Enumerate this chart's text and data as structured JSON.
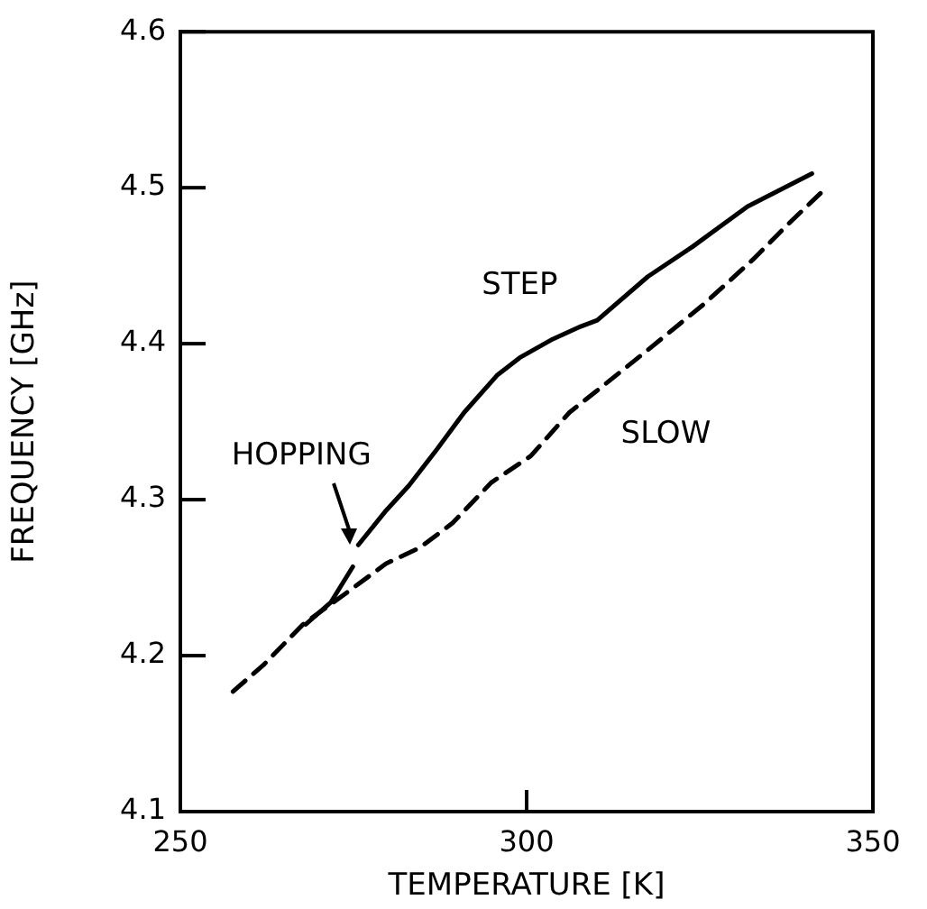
{
  "chart_data": {
    "type": "line",
    "xlabel": "TEMPERATURE [K]",
    "ylabel": "FREQUENCY [GHz]",
    "xlim": [
      250,
      350
    ],
    "xticks": [
      250,
      300,
      350
    ],
    "ylim": [
      4.1,
      4.6
    ],
    "yticks": [
      4.1,
      4.2,
      4.3,
      4.4,
      4.5,
      4.6
    ],
    "grid": false,
    "legend": false,
    "marker": "none",
    "series": [
      {
        "name": "STEP",
        "color": "#000000",
        "line_style": "solid",
        "x": [
          268.1,
          271.7,
          274.9,
          null,
          275.7,
          279.7,
          283,
          287,
          291,
          295.8,
          299,
          303.8,
          307.8,
          310.2,
          317.5,
          323.9,
          331.9,
          341.2
        ],
        "values": [
          4.22,
          4.234,
          4.257,
          null,
          4.271,
          4.293,
          4.309,
          4.332,
          4.356,
          4.38,
          4.391,
          4.403,
          4.411,
          4.415,
          4.443,
          4.462,
          4.488,
          4.509
        ]
      },
      {
        "name": "SLOW",
        "color": "#000000",
        "line_style": "dashed",
        "x": [
          257.6,
          262,
          267.7,
          273.3,
          279.7,
          284.5,
          289.3,
          294.9,
          300.6,
          306.2,
          310.2,
          317.5,
          325.5,
          332.7,
          337.6,
          342.8
        ],
        "values": [
          4.177,
          4.194,
          4.22,
          4.238,
          4.259,
          4.269,
          4.285,
          4.311,
          4.328,
          4.356,
          4.37,
          4.396,
          4.425,
          4.454,
          4.476,
          4.498
        ]
      }
    ],
    "annotations": [
      "HOPPING"
    ]
  }
}
